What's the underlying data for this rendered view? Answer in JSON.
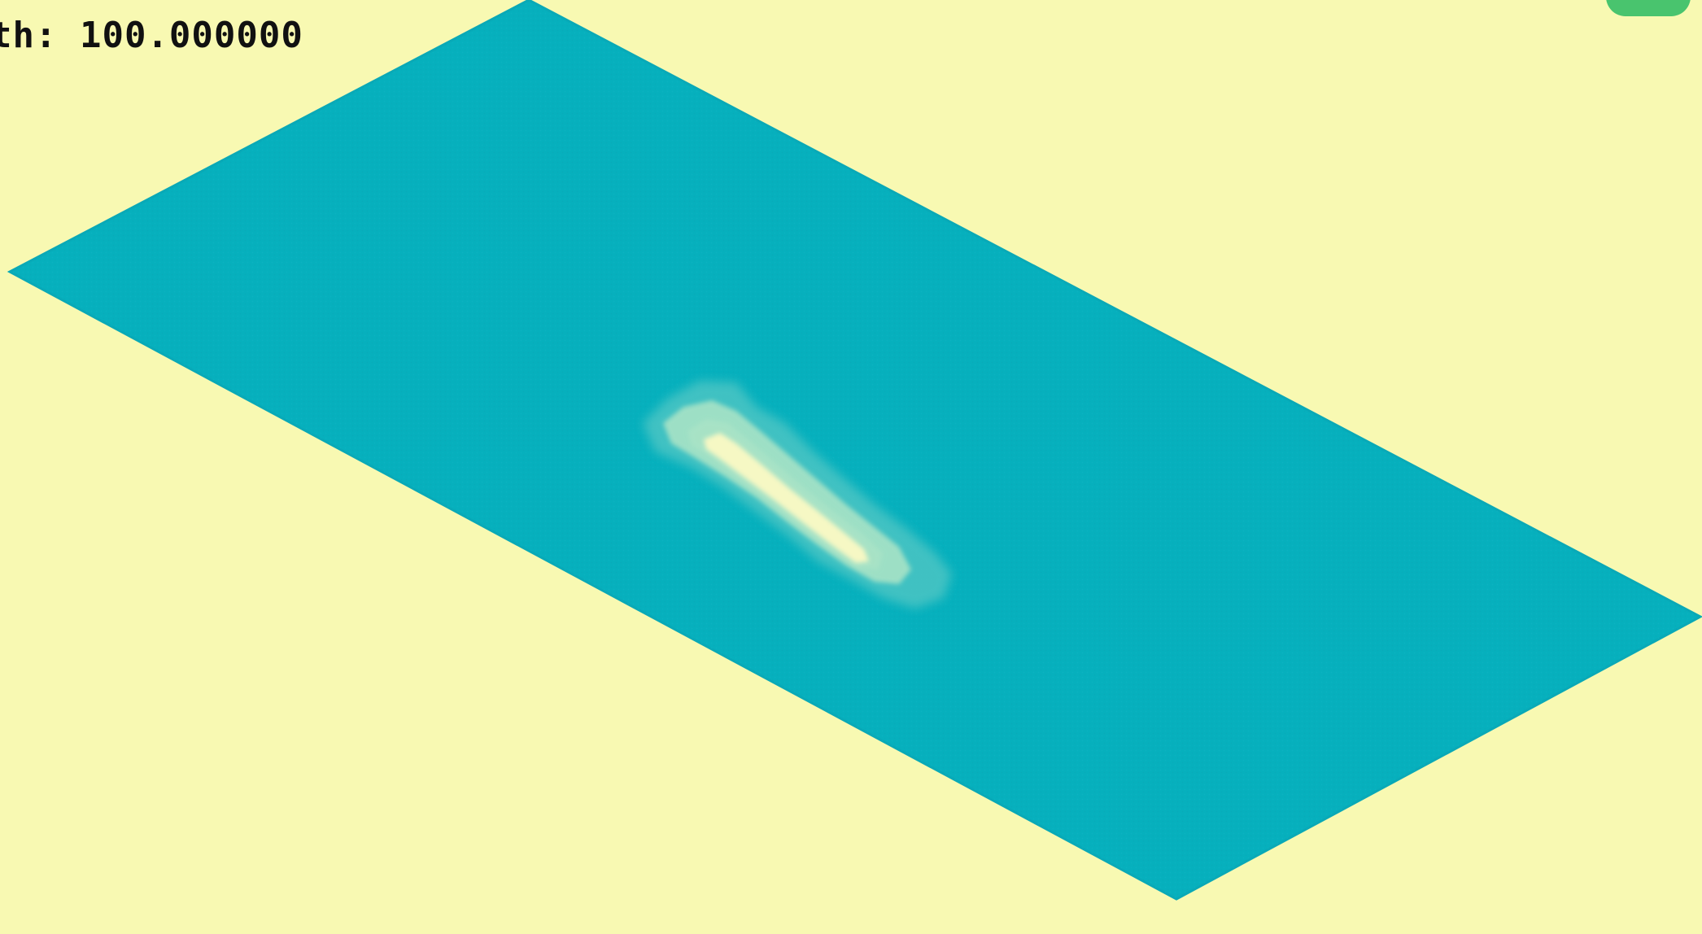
{
  "hud": {
    "readout_text": "th: 100.000000"
  },
  "corner_button": {
    "label": "",
    "color": "#49c46e"
  },
  "colors": {
    "background": "#f8f9b2",
    "water": "#06b0bd",
    "water_edge": "#09a9b7",
    "island_shallow": "#4fc6c4",
    "island_mid": "#a8e3c6",
    "island_peak": "#f6f8c4"
  }
}
